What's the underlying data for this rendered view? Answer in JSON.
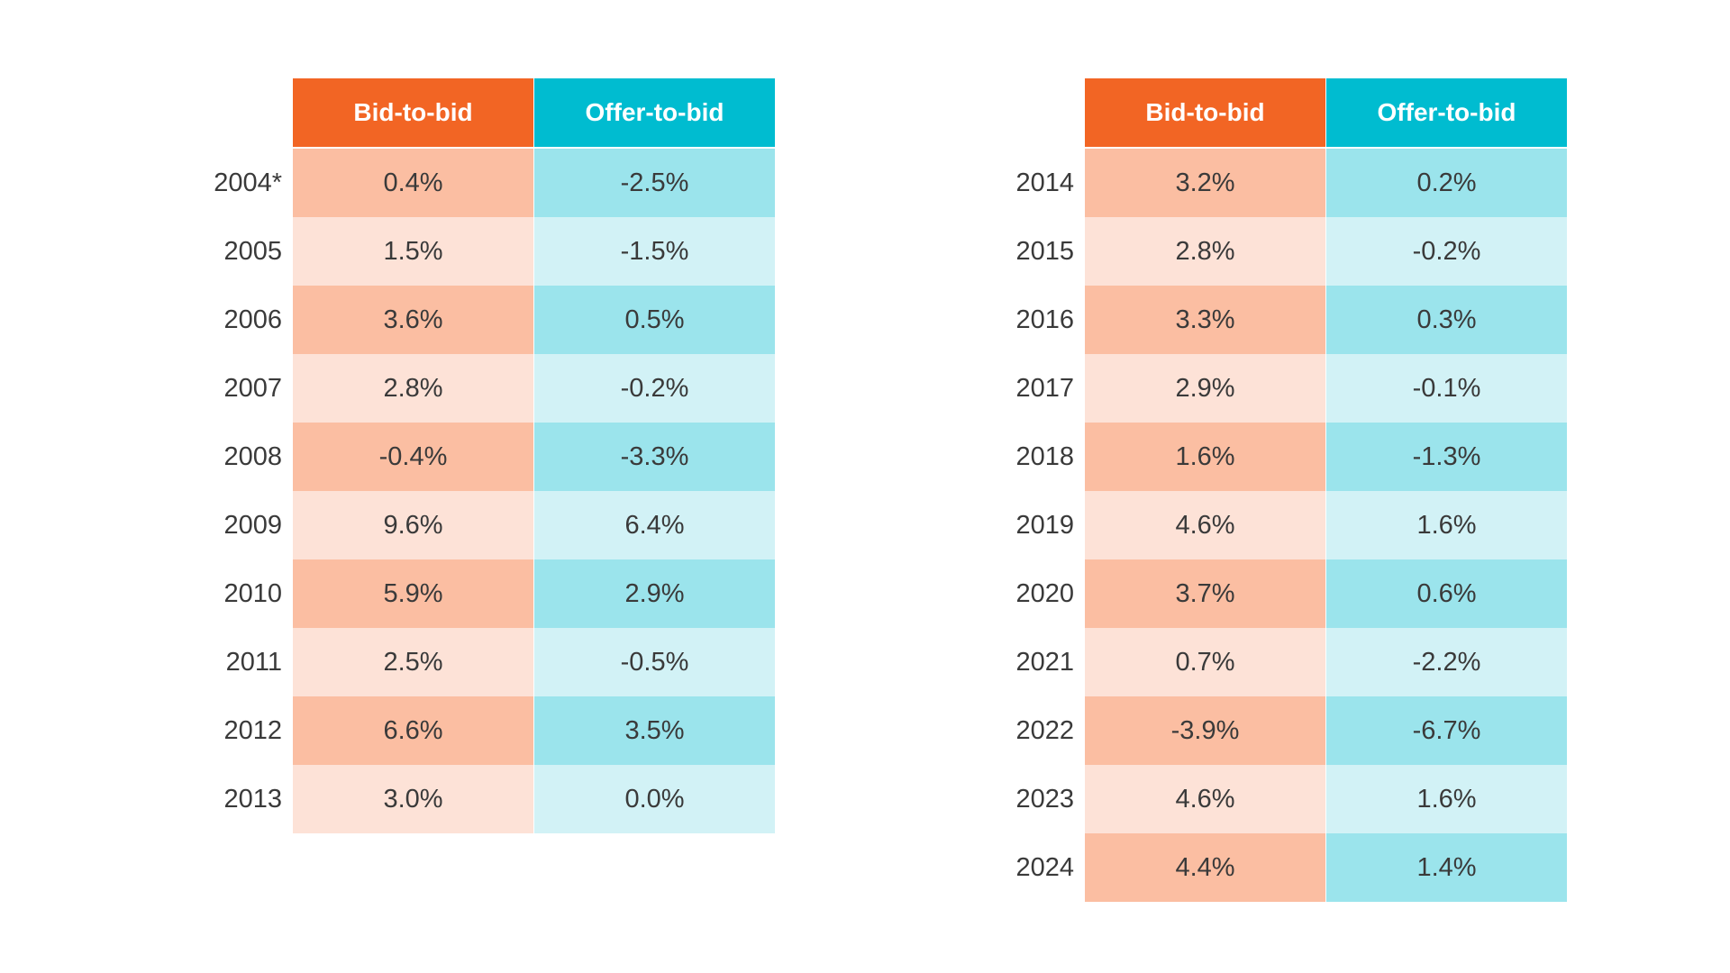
{
  "colors": {
    "bid_header": "#f26524",
    "offer_header": "#00bcd0",
    "bid_dark": "#fbbea2",
    "bid_light": "#fde2d7",
    "offer_dark": "#9be4ec",
    "offer_light": "#d2f2f6"
  },
  "chart_data": [
    {
      "type": "table",
      "columns": [
        "Bid-to-bid",
        "Offer-to-bid"
      ],
      "rows": [
        {
          "year": "2004*",
          "bid": "0.4%",
          "offer": "-2.5%"
        },
        {
          "year": "2005",
          "bid": "1.5%",
          "offer": "-1.5%"
        },
        {
          "year": "2006",
          "bid": "3.6%",
          "offer": "0.5%"
        },
        {
          "year": "2007",
          "bid": "2.8%",
          "offer": "-0.2%"
        },
        {
          "year": "2008",
          "bid": "-0.4%",
          "offer": "-3.3%"
        },
        {
          "year": "2009",
          "bid": "9.6%",
          "offer": "6.4%"
        },
        {
          "year": "2010",
          "bid": "5.9%",
          "offer": "2.9%"
        },
        {
          "year": "2011",
          "bid": "2.5%",
          "offer": "-0.5%"
        },
        {
          "year": "2012",
          "bid": "6.6%",
          "offer": "3.5%"
        },
        {
          "year": "2013",
          "bid": "3.0%",
          "offer": "0.0%"
        }
      ]
    },
    {
      "type": "table",
      "columns": [
        "Bid-to-bid",
        "Offer-to-bid"
      ],
      "rows": [
        {
          "year": "2014",
          "bid": "3.2%",
          "offer": "0.2%"
        },
        {
          "year": "2015",
          "bid": "2.8%",
          "offer": "-0.2%"
        },
        {
          "year": "2016",
          "bid": "3.3%",
          "offer": "0.3%"
        },
        {
          "year": "2017",
          "bid": "2.9%",
          "offer": "-0.1%"
        },
        {
          "year": "2018",
          "bid": "1.6%",
          "offer": "-1.3%"
        },
        {
          "year": "2019",
          "bid": "4.6%",
          "offer": "1.6%"
        },
        {
          "year": "2020",
          "bid": "3.7%",
          "offer": "0.6%"
        },
        {
          "year": "2021",
          "bid": "0.7%",
          "offer": "-2.2%"
        },
        {
          "year": "2022",
          "bid": "-3.9%",
          "offer": "-6.7%"
        },
        {
          "year": "2023",
          "bid": "4.6%",
          "offer": "1.6%"
        },
        {
          "year": "2024",
          "bid": "4.4%",
          "offer": "1.4%"
        }
      ]
    }
  ]
}
